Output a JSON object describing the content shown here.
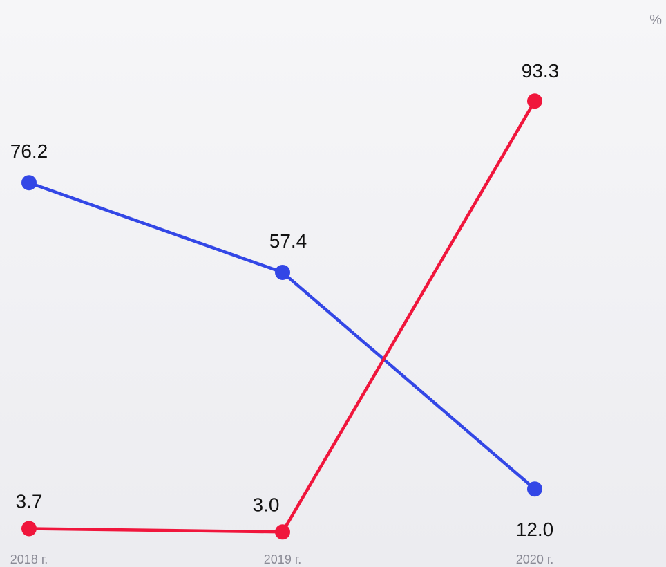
{
  "unit": "%",
  "chart_data": {
    "type": "line",
    "categories": [
      "2018 г.",
      "2019 г.",
      "2020 г."
    ],
    "series": [
      {
        "values": [
          76.2,
          57.4,
          12.0
        ],
        "labels": [
          "76.2",
          "57.4",
          "12.0"
        ],
        "color": "#3347e6"
      },
      {
        "values": [
          3.7,
          3.0,
          93.3
        ],
        "labels": [
          "3.7",
          "3.0",
          "93.3"
        ],
        "color": "#f0163c"
      }
    ],
    "title": "",
    "xlabel": "",
    "ylabel": "",
    "ylim": [
      0,
      100
    ],
    "grid": false,
    "legend": "none"
  }
}
